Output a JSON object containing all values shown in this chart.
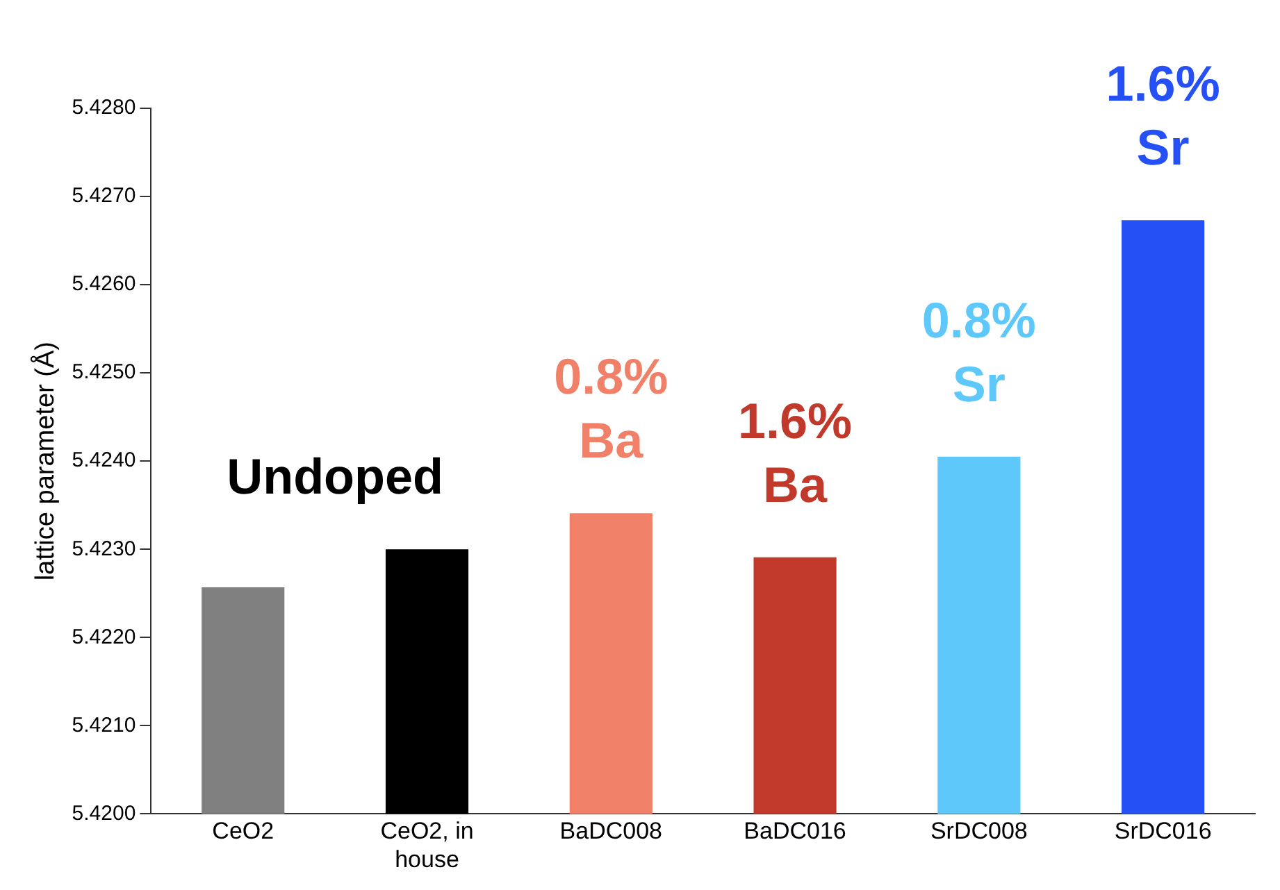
{
  "chart_data": {
    "type": "bar",
    "ylabel": "lattice parameter (Å)",
    "categories": [
      "CeO2",
      "CeO2, in house",
      "BaDC008",
      "BaDC016",
      "SrDC008",
      "SrDC016"
    ],
    "values": [
      5.42257,
      5.423,
      5.42341,
      5.42291,
      5.42405,
      5.42673
    ],
    "colors": [
      "#808080",
      "#000000",
      "#f08068",
      "#c0392b",
      "#5ec8fa",
      "#2450f5"
    ],
    "ylim": [
      5.42,
      5.428
    ],
    "yticks": [
      {
        "value": 5.42,
        "label": "5.4200"
      },
      {
        "value": 5.421,
        "label": "5.4210"
      },
      {
        "value": 5.422,
        "label": "5.4220"
      },
      {
        "value": 5.423,
        "label": "5.4230"
      },
      {
        "value": 5.424,
        "label": "5.4240"
      },
      {
        "value": 5.425,
        "label": "5.4250"
      },
      {
        "value": 5.426,
        "label": "5.4260"
      },
      {
        "value": 5.427,
        "label": "5.4270"
      },
      {
        "value": 5.428,
        "label": "5.4280"
      }
    ],
    "grid": false,
    "legend": false,
    "annotations": [
      "Undoped",
      "0.8% Ba",
      "1.6% Ba",
      "0.8% Sr",
      "1.6% Sr"
    ]
  }
}
